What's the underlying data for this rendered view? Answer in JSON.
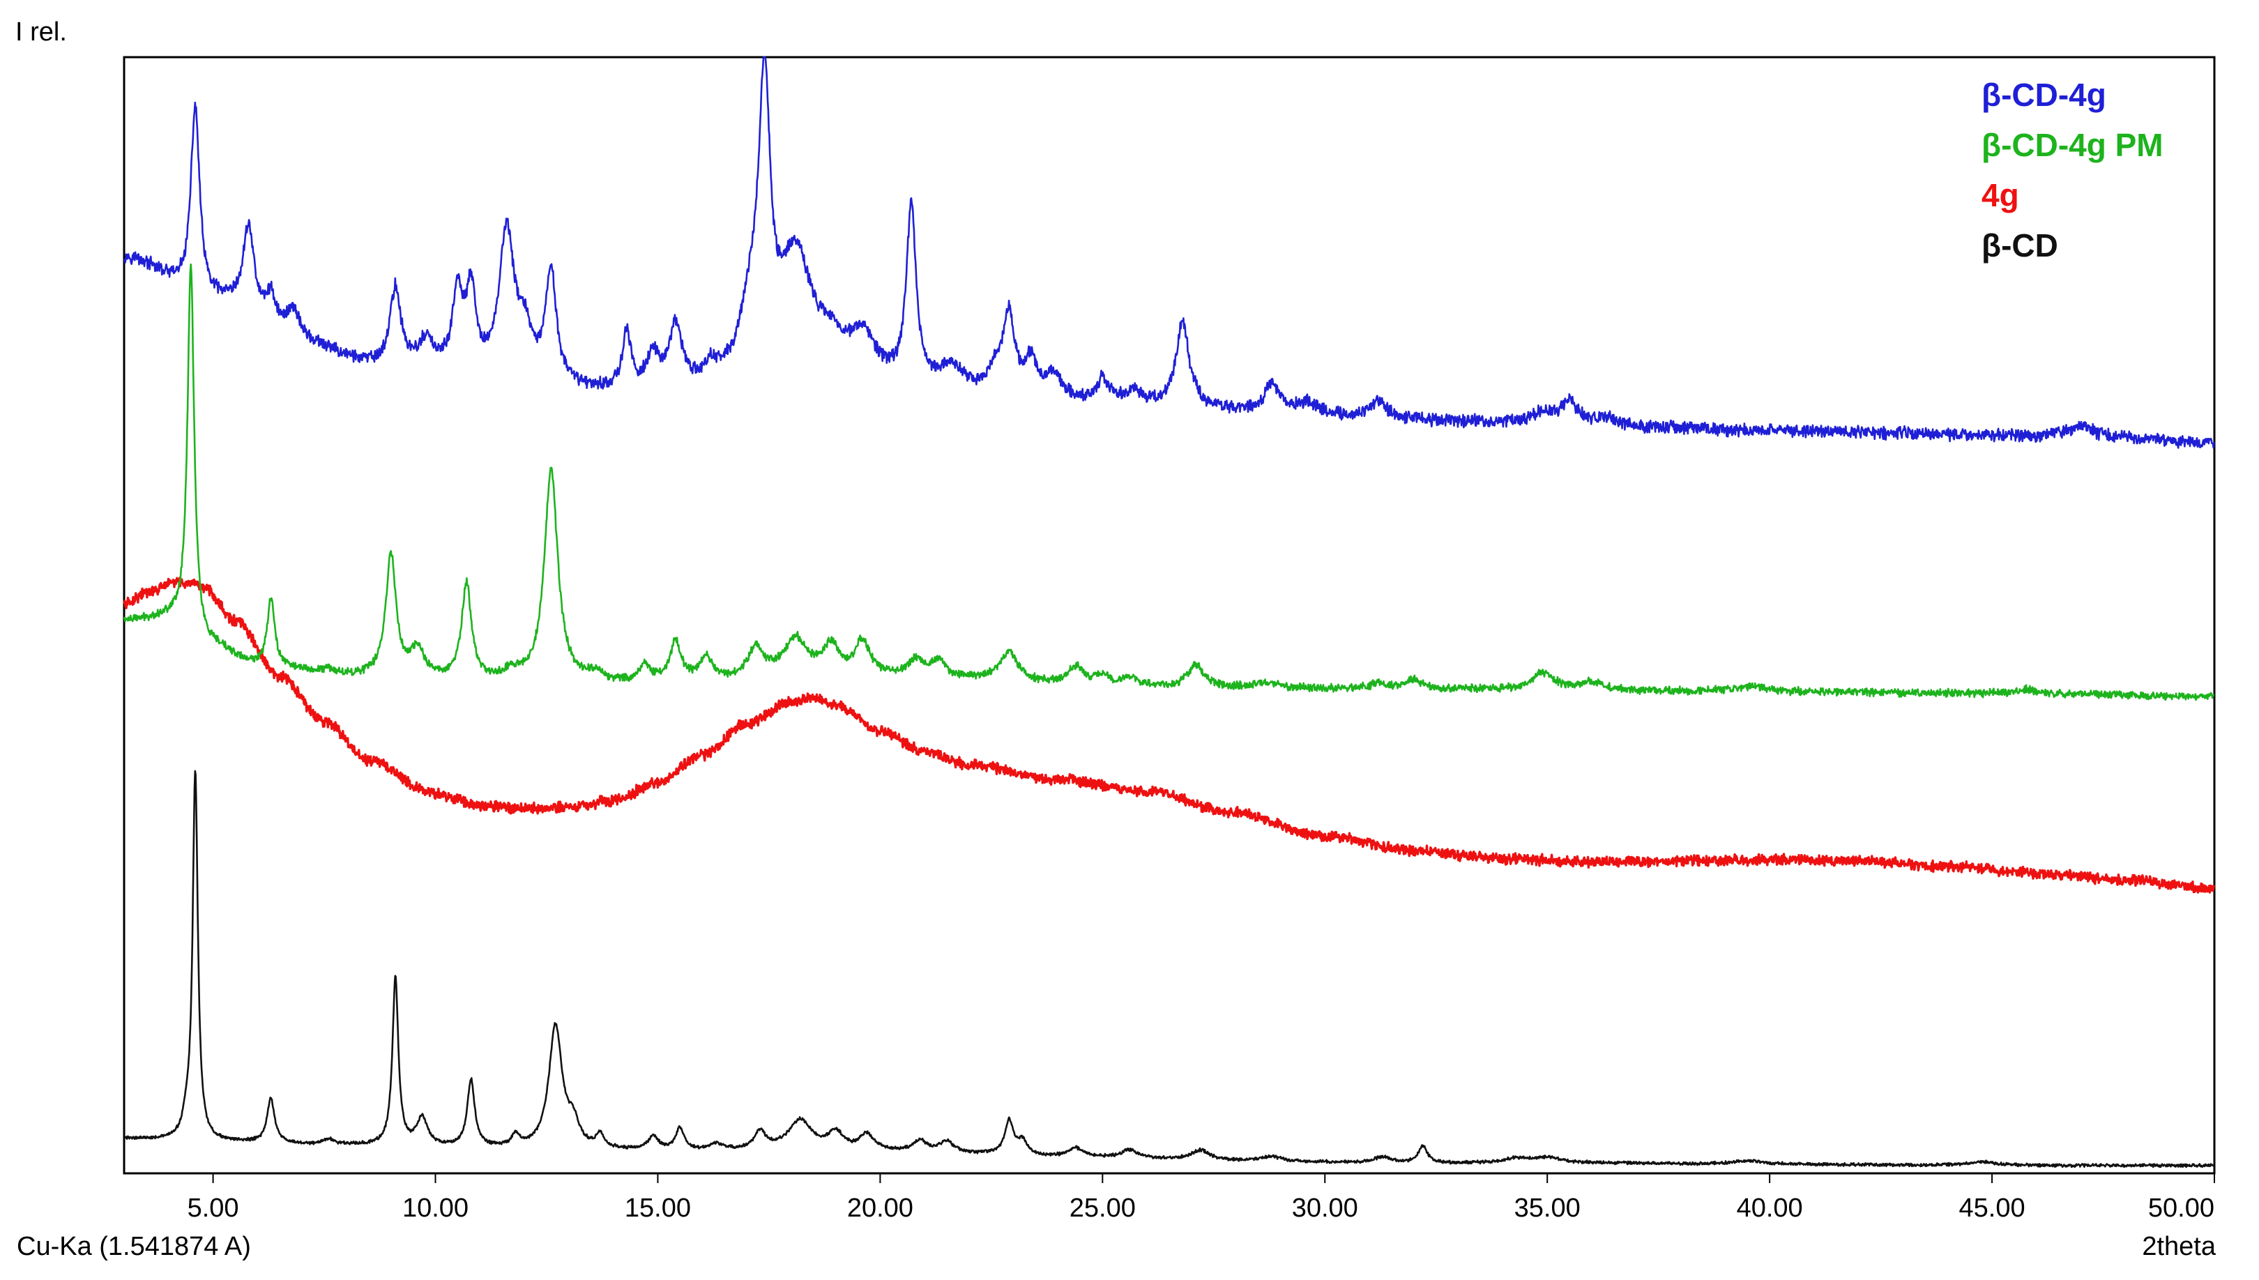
{
  "chart_data": {
    "type": "line",
    "title": "",
    "xlabel": "2theta",
    "ylabel": "I rel.",
    "footer_left": "Cu-Ka (1.541874 A)",
    "xlim": [
      3,
      50
    ],
    "ylim": [
      0,
      100
    ],
    "grid": false,
    "legend_position": "top-right",
    "x_ticks": [
      "5.00",
      "10.00",
      "15.00",
      "20.00",
      "25.00",
      "30.00",
      "35.00",
      "40.00",
      "45.00",
      "50.00"
    ],
    "x_tick_values": [
      5,
      10,
      15,
      20,
      25,
      30,
      35,
      40,
      45,
      50
    ],
    "series": [
      {
        "name": "β-CD-4g",
        "color": "#1f1fd6",
        "baseline": [
          [
            3,
            82
          ],
          [
            5,
            78
          ],
          [
            7,
            74
          ],
          [
            9,
            72
          ],
          [
            11,
            71
          ],
          [
            13,
            70
          ],
          [
            15,
            69.5
          ],
          [
            17,
            70
          ],
          [
            19,
            71
          ],
          [
            21,
            70
          ],
          [
            23,
            69.5
          ],
          [
            25,
            69
          ],
          [
            27,
            68.5
          ],
          [
            29,
            68
          ],
          [
            31,
            67.7
          ],
          [
            33,
            67.3
          ],
          [
            35,
            67
          ],
          [
            37,
            66.8
          ],
          [
            40,
            66.5
          ],
          [
            43,
            66.3
          ],
          [
            45,
            66.1
          ],
          [
            47,
            66
          ],
          [
            50,
            65.5
          ]
        ],
        "peaks": [
          [
            4.6,
            17,
            0.12
          ],
          [
            5.8,
            8,
            0.15
          ],
          [
            6.3,
            3,
            0.15
          ],
          [
            6.8,
            3,
            0.2
          ],
          [
            9.1,
            7,
            0.15
          ],
          [
            9.8,
            2.5,
            0.2
          ],
          [
            10.5,
            7,
            0.15
          ],
          [
            10.8,
            7,
            0.13
          ],
          [
            11.6,
            13,
            0.2
          ],
          [
            12.0,
            4,
            0.2
          ],
          [
            12.6,
            10,
            0.15
          ],
          [
            14.3,
            5,
            0.12
          ],
          [
            14.9,
            3,
            0.2
          ],
          [
            15.4,
            5.5,
            0.18
          ],
          [
            16.2,
            1.5,
            0.2
          ],
          [
            17.1,
            6,
            0.3
          ],
          [
            17.4,
            24,
            0.15
          ],
          [
            18.1,
            11,
            0.45
          ],
          [
            18.9,
            2,
            0.3
          ],
          [
            19.6,
            3.5,
            0.35
          ],
          [
            20.7,
            16,
            0.13
          ],
          [
            21.6,
            2,
            0.3
          ],
          [
            22.6,
            2,
            0.2
          ],
          [
            22.9,
            7,
            0.15
          ],
          [
            23.4,
            3,
            0.15
          ],
          [
            23.9,
            2,
            0.2
          ],
          [
            25.0,
            2,
            0.15
          ],
          [
            25.7,
            1,
            0.2
          ],
          [
            26.8,
            7.5,
            0.18
          ],
          [
            28.8,
            2.5,
            0.2
          ],
          [
            29.6,
            1,
            0.3
          ],
          [
            31.2,
            1.5,
            0.2
          ],
          [
            34.9,
            1,
            0.4
          ],
          [
            35.5,
            2,
            0.2
          ],
          [
            36.3,
            0.8,
            0.3
          ],
          [
            47.0,
            1,
            0.3
          ]
        ]
      },
      {
        "name": "β-CD-4g PM",
        "color": "#1db31d",
        "baseline": [
          [
            3,
            49.5
          ],
          [
            4.0,
            49.7
          ],
          [
            5,
            47
          ],
          [
            6,
            45.5
          ],
          [
            8,
            44.5
          ],
          [
            10,
            44.2
          ],
          [
            12,
            44
          ],
          [
            14,
            43.8
          ],
          [
            16,
            44
          ],
          [
            18,
            44.8
          ],
          [
            20,
            44.5
          ],
          [
            22,
            44.2
          ],
          [
            24,
            43.8
          ],
          [
            26,
            43.6
          ],
          [
            28,
            43.5
          ],
          [
            30,
            43.4
          ],
          [
            32,
            43.4
          ],
          [
            35,
            43.3
          ],
          [
            38,
            43.2
          ],
          [
            41,
            43.1
          ],
          [
            44,
            43
          ],
          [
            47,
            42.9
          ],
          [
            50,
            42.7
          ]
        ],
        "peaks": [
          [
            4.5,
            33,
            0.09
          ],
          [
            6.3,
            6,
            0.1
          ],
          [
            7.6,
            0.5,
            0.2
          ],
          [
            9.0,
            11,
            0.14
          ],
          [
            9.6,
            2.5,
            0.18
          ],
          [
            10.7,
            8.5,
            0.13
          ],
          [
            11.7,
            0.8,
            0.15
          ],
          [
            12.6,
            19,
            0.18
          ],
          [
            13.6,
            0.8,
            0.2
          ],
          [
            14.7,
            1.5,
            0.15
          ],
          [
            15.4,
            3.5,
            0.15
          ],
          [
            16.1,
            2,
            0.18
          ],
          [
            17.2,
            2.5,
            0.18
          ],
          [
            18.1,
            3,
            0.3
          ],
          [
            18.9,
            2.5,
            0.2
          ],
          [
            19.6,
            3,
            0.2
          ],
          [
            20.8,
            1.5,
            0.2
          ],
          [
            21.3,
            1.5,
            0.2
          ],
          [
            22.9,
            2.5,
            0.25
          ],
          [
            24.4,
            1.5,
            0.2
          ],
          [
            25.0,
            0.8,
            0.2
          ],
          [
            25.6,
            0.8,
            0.2
          ],
          [
            27.1,
            2,
            0.2
          ],
          [
            28.7,
            0.5,
            0.3
          ],
          [
            31.2,
            0.5,
            0.2
          ],
          [
            32.0,
            0.8,
            0.2
          ],
          [
            34.9,
            1.5,
            0.3
          ],
          [
            36.0,
            0.7,
            0.3
          ],
          [
            39.6,
            0.5,
            0.4
          ],
          [
            45.8,
            0.4,
            0.3
          ]
        ]
      },
      {
        "name": "4g",
        "color": "#ee1111",
        "baseline": [
          [
            3,
            51
          ],
          [
            3.5,
            52
          ],
          [
            4.2,
            53
          ],
          [
            4.8,
            52.5
          ],
          [
            5.5,
            49.5
          ],
          [
            6.5,
            44.5
          ],
          [
            7.5,
            40.5
          ],
          [
            8.5,
            37
          ],
          [
            10,
            34
          ],
          [
            11,
            33
          ],
          [
            12,
            32.7
          ],
          [
            13,
            32.8
          ],
          [
            14,
            33.4
          ],
          [
            15,
            35
          ],
          [
            16,
            37.5
          ],
          [
            17,
            40.3
          ],
          [
            18,
            42.3
          ],
          [
            18.5,
            42.6
          ],
          [
            19,
            42
          ],
          [
            20,
            39.6
          ],
          [
            21,
            37.8
          ],
          [
            22,
            36.6
          ],
          [
            24,
            35.3
          ],
          [
            26,
            34.2
          ],
          [
            28,
            32.3
          ],
          [
            30,
            30.2
          ],
          [
            32,
            28.9
          ],
          [
            34,
            28.2
          ],
          [
            36,
            27.9
          ],
          [
            40,
            28.1
          ],
          [
            42,
            28
          ],
          [
            44,
            27.5
          ],
          [
            46,
            26.9
          ],
          [
            48,
            26.3
          ],
          [
            50,
            25.5
          ]
        ],
        "peaks": []
      },
      {
        "name": "β-CD",
        "color": "#111111",
        "baseline": [
          [
            3,
            3.1
          ],
          [
            5,
            2.8
          ],
          [
            8,
            2.5
          ],
          [
            10,
            2.3
          ],
          [
            13,
            2.1
          ],
          [
            16,
            1.9
          ],
          [
            18,
            2.2
          ],
          [
            20,
            1.9
          ],
          [
            22,
            1.7
          ],
          [
            25,
            1.4
          ],
          [
            28,
            1.1
          ],
          [
            30,
            1.0
          ],
          [
            33,
            0.9
          ],
          [
            36,
            0.9
          ],
          [
            40,
            0.8
          ],
          [
            45,
            0.7
          ],
          [
            50,
            0.7
          ]
        ],
        "peaks": [
          [
            4.4,
            1.5,
            0.1
          ],
          [
            4.6,
            33,
            0.07
          ],
          [
            6.3,
            4,
            0.1
          ],
          [
            7.6,
            0.5,
            0.15
          ],
          [
            9.1,
            15,
            0.08
          ],
          [
            9.7,
            2.5,
            0.15
          ],
          [
            10.8,
            6,
            0.1
          ],
          [
            11.8,
            1,
            0.1
          ],
          [
            12.7,
            11,
            0.18
          ],
          [
            13.1,
            2,
            0.15
          ],
          [
            13.7,
            1.2,
            0.1
          ],
          [
            14.9,
            1.2,
            0.15
          ],
          [
            15.5,
            2,
            0.12
          ],
          [
            16.3,
            0.6,
            0.2
          ],
          [
            17.3,
            1.5,
            0.15
          ],
          [
            18.2,
            2.5,
            0.3
          ],
          [
            19.0,
            1.5,
            0.2
          ],
          [
            19.7,
            1.5,
            0.2
          ],
          [
            20.9,
            1,
            0.2
          ],
          [
            21.5,
            1,
            0.2
          ],
          [
            22.9,
            3,
            0.12
          ],
          [
            23.2,
            1.2,
            0.12
          ],
          [
            24.4,
            0.8,
            0.2
          ],
          [
            25.6,
            0.7,
            0.2
          ],
          [
            27.2,
            0.9,
            0.25
          ],
          [
            28.8,
            0.4,
            0.3
          ],
          [
            31.3,
            0.5,
            0.2
          ],
          [
            32.2,
            1.5,
            0.12
          ],
          [
            34.3,
            0.4,
            0.3
          ],
          [
            35.0,
            0.5,
            0.4
          ],
          [
            39.5,
            0.3,
            0.4
          ],
          [
            44.8,
            0.3,
            0.4
          ]
        ]
      }
    ]
  }
}
